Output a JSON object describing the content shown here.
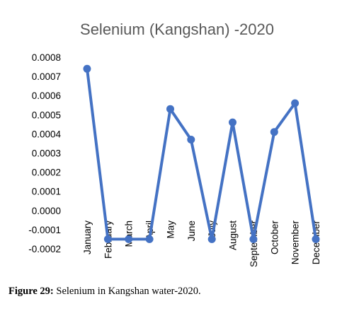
{
  "chart_data": {
    "type": "line",
    "title": "Selenium (Kangshan) -2020",
    "categories": [
      "January",
      "February",
      "March",
      "April",
      "May",
      "June",
      "July",
      "August",
      "September",
      "October",
      "November",
      "December"
    ],
    "series": [
      {
        "values": [
          0.00074,
          -0.00015,
          -0.00015,
          -0.00015,
          0.00053,
          0.00037,
          -0.00015,
          0.00046,
          -0.00015,
          0.00041,
          0.00056,
          -0.00015
        ]
      }
    ],
    "ylim": [
      -0.0002,
      0.0008
    ],
    "yticks": [
      "0.0008",
      "0.0007",
      "0.0006",
      "0.0005",
      "0.0004",
      "0.0003",
      "0.0002",
      "0.0001",
      "0.0000",
      "-0.0001",
      "-0.0002"
    ],
    "grid": false,
    "line_color": "#4472c4"
  },
  "caption": {
    "label": "Figure 29:",
    "text": " Selenium in Kangshan water-2020."
  }
}
